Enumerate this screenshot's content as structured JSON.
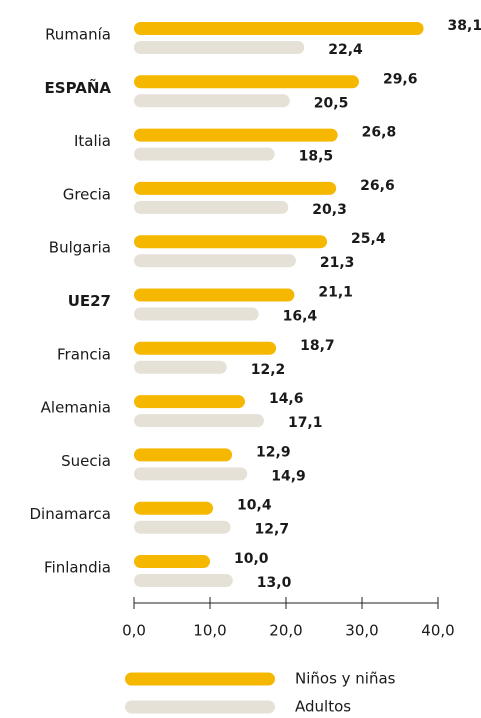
{
  "chart_data": {
    "type": "bar",
    "orientation": "horizontal",
    "categories": [
      "Rumanía",
      "ESPAÑA",
      "Italia",
      "Grecia",
      "Bulgaria",
      "UE27",
      "Francia",
      "Alemania",
      "Suecia",
      "Dinamarca",
      "Finlandia"
    ],
    "highlight": [
      "ESPAÑA",
      "UE27"
    ],
    "series": [
      {
        "name": "Niños y niñas",
        "color": "#f5b700",
        "label_color": "#f0b000",
        "values": [
          38.1,
          29.6,
          26.8,
          26.6,
          25.4,
          21.1,
          18.7,
          14.6,
          12.9,
          10.4,
          10.0
        ],
        "value_labels": [
          "38,1",
          "29,6",
          "26,8",
          "26,6",
          "25,4",
          "21,1",
          "18,7",
          "14,6",
          "12,9",
          "10,4",
          "10,0"
        ]
      },
      {
        "name": "Adultos",
        "color": "#e6e1d7",
        "label_color": "#ddd8cd",
        "values": [
          22.4,
          20.5,
          18.5,
          20.3,
          21.3,
          16.4,
          12.2,
          17.1,
          14.9,
          12.7,
          13.0
        ],
        "value_labels": [
          "22,4",
          "20,5",
          "18,5",
          "20,3",
          "21,3",
          "16,4",
          "12,2",
          "17,1",
          "14,9",
          "12,7",
          "13,0"
        ]
      }
    ],
    "xlim": [
      0,
      40
    ],
    "xticks": [
      {
        "value": 0,
        "label": "0,0"
      },
      {
        "value": 10,
        "label": "10,0"
      },
      {
        "value": 20,
        "label": "20,0"
      },
      {
        "value": 30,
        "label": "30,0"
      },
      {
        "value": 40,
        "label": "40,0"
      }
    ]
  }
}
